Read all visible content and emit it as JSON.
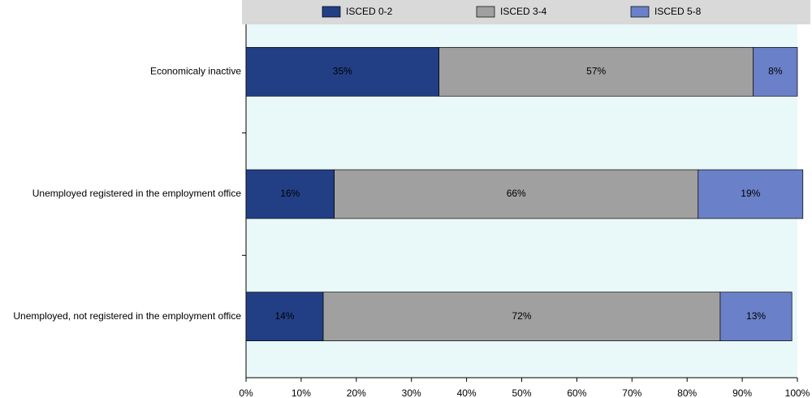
{
  "chart_data": {
    "type": "stacked-bar-horizontal",
    "categories": [
      "Economicaly inactive",
      "Unemployed registered in the employment office",
      "Unemployed, not registered in the employment office"
    ],
    "series": [
      {
        "name": "ISCED 0-2",
        "color": "#223f86",
        "values": [
          35,
          16,
          14
        ],
        "value_labels": [
          "35%",
          "16%",
          "14%"
        ]
      },
      {
        "name": "ISCED 3-4",
        "color": "#a0a0a0",
        "values": [
          57,
          66,
          72
        ],
        "value_labels": [
          "57%",
          "66%",
          "72%"
        ]
      },
      {
        "name": "ISCED 5-8",
        "color": "#6a80c8",
        "values": [
          8,
          19,
          13
        ],
        "value_labels": [
          "8%",
          "19%",
          "13%"
        ]
      }
    ],
    "xlim": [
      0,
      100
    ],
    "xticks": [
      {
        "value": 0,
        "label": "0%"
      },
      {
        "value": 10,
        "label": "10%"
      },
      {
        "value": 20,
        "label": "20%"
      },
      {
        "value": 30,
        "label": "30%"
      },
      {
        "value": 40,
        "label": "40%"
      },
      {
        "value": 50,
        "label": "50%"
      },
      {
        "value": 60,
        "label": "60%"
      },
      {
        "value": 70,
        "label": "70%"
      },
      {
        "value": 80,
        "label": "80%"
      },
      {
        "value": 90,
        "label": "90%"
      },
      {
        "value": 100,
        "label": "100%"
      }
    ],
    "legend": "top"
  }
}
